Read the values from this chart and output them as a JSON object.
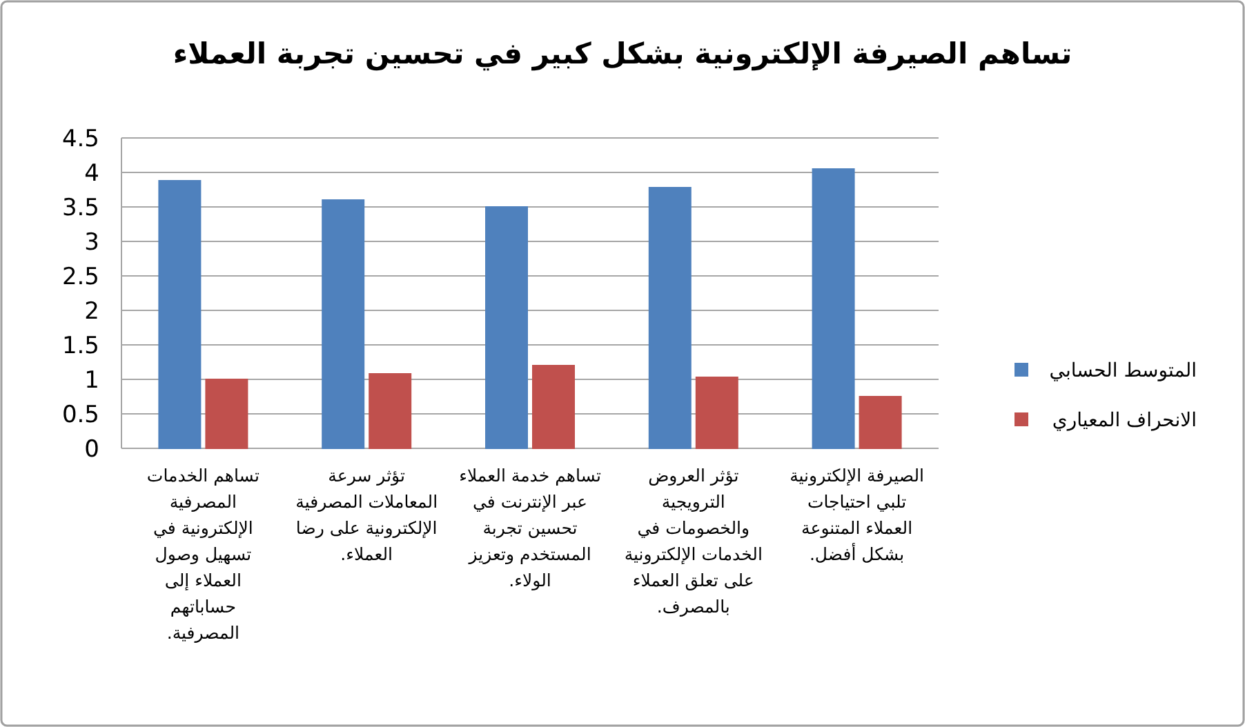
{
  "chart_data": {
    "type": "bar",
    "title": "تساهم الصيرفة الإلكترونية بشكل كبير في تحسين تجربة العملاء",
    "categories": [
      "تساهم الخدمات المصرفية الإلكترونية في تسهيل وصول العملاء إلى حساباتهم المصرفية.",
      "تؤثر سرعة المعاملات المصرفية الإلكترونية على رضا العملاء.",
      "تساهم خدمة العملاء عبر الإنترنت في تحسين تجربة المستخدم وتعزيز الولاء.",
      "تؤثر العروض الترويجية والخصومات في الخدمات الإلكترونية على تعلق العملاء بالمصرف.",
      "الصيرفة الإلكترونية تلبي احتياجات العملاء المتنوعة بشكل أفضل."
    ],
    "series": [
      {
        "name": "المتوسط الحسابي",
        "color": "#4f81bd",
        "values": [
          3.88,
          3.6,
          3.5,
          3.78,
          4.05
        ]
      },
      {
        "name": "الانحراف المعياري",
        "color": "#c0504d",
        "values": [
          1.0,
          1.08,
          1.2,
          1.03,
          0.75
        ]
      }
    ],
    "ylim": [
      0,
      4.5
    ],
    "yticks": [
      0,
      0.5,
      1,
      1.5,
      2,
      2.5,
      3,
      3.5,
      4,
      4.5
    ],
    "grid": "y",
    "legend": "right"
  }
}
